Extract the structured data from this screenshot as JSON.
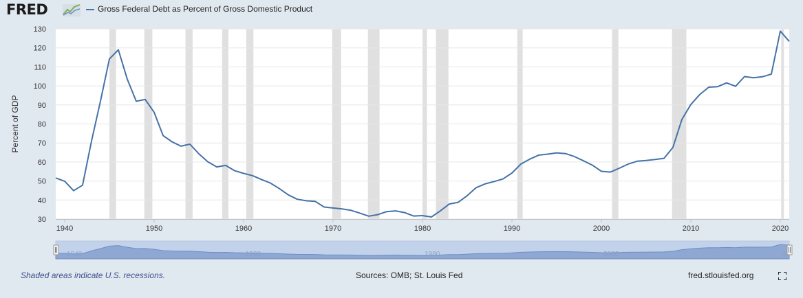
{
  "header": {
    "logo_text": "FRED",
    "legend_label": "Gross Federal Debt as Percent of Gross Domestic Product"
  },
  "footer": {
    "note": "Shaded areas indicate U.S. recessions.",
    "sources": "Sources: OMB; St. Louis Fed",
    "site": "fred.stlouisfed.org"
  },
  "colors": {
    "series": "#4572a7",
    "recession": "#e0e0e0",
    "background": "#e1e9f0",
    "plot_background": "#ffffff",
    "navigator_fill": "#c2d2eb",
    "navigator_area": "#8ea8d3"
  },
  "icons": {
    "fullscreen": "expand-corners-icon"
  },
  "chart_data": {
    "type": "line",
    "ylabel": "Percent of GDP",
    "xlim": [
      1939,
      2021
    ],
    "ylim": [
      30,
      130
    ],
    "yticks": [
      30,
      40,
      50,
      60,
      70,
      80,
      90,
      100,
      110,
      120,
      130
    ],
    "xticks": [
      1940,
      1950,
      1960,
      1970,
      1980,
      1990,
      2000,
      2010,
      2020
    ],
    "grid": true,
    "recessions": [
      [
        1945.0,
        1945.75
      ],
      [
        1948.9,
        1949.8
      ],
      [
        1953.5,
        1954.3
      ],
      [
        1957.6,
        1958.3
      ],
      [
        1960.3,
        1961.1
      ],
      [
        1969.9,
        1970.9
      ],
      [
        1973.9,
        1975.2
      ],
      [
        1980.0,
        1980.5
      ],
      [
        1981.5,
        1982.9
      ],
      [
        1990.6,
        1991.2
      ],
      [
        2001.2,
        2001.9
      ],
      [
        2007.9,
        2009.5
      ],
      [
        2020.1,
        2020.4
      ]
    ],
    "navigator_labels": [
      "1940",
      "1960",
      "1980",
      "2000",
      "20"
    ],
    "series": [
      {
        "x": [
          1939,
          1940,
          1941,
          1942,
          1943,
          1944,
          1945,
          1946,
          1947,
          1948,
          1949,
          1950,
          1951,
          1952,
          1953,
          1954,
          1955,
          1956,
          1957,
          1958,
          1959,
          1960,
          1961,
          1962,
          1963,
          1964,
          1965,
          1966,
          1967,
          1968,
          1969,
          1970,
          1971,
          1972,
          1973,
          1974,
          1975,
          1976,
          1977,
          1978,
          1979,
          1980,
          1981,
          1982,
          1983,
          1984,
          1985,
          1986,
          1987,
          1988,
          1989,
          1990,
          1991,
          1992,
          1993,
          1994,
          1995,
          1996,
          1997,
          1998,
          1999,
          2000,
          2001,
          2002,
          2003,
          2004,
          2005,
          2006,
          2007,
          2008,
          2009,
          2010,
          2011,
          2012,
          2013,
          2014,
          2015,
          2016,
          2017,
          2018,
          2019,
          2020,
          2021
        ],
        "values": [
          51.6,
          49.9,
          44.9,
          47.8,
          71,
          92,
          114.2,
          119,
          103.5,
          91.9,
          92.9,
          86.1,
          73.9,
          70.6,
          68.3,
          69.4,
          64.3,
          60.1,
          57.4,
          58.2,
          55.4,
          54,
          52.8,
          50.8,
          48.9,
          46,
          42.7,
          40.4,
          39.6,
          39.3,
          36.3,
          35.8,
          35.3,
          34.6,
          33.1,
          31.5,
          32.3,
          33.9,
          34.3,
          33.4,
          31.6,
          31.8,
          31.1,
          34.3,
          37.9,
          38.8,
          42.3,
          46.5,
          48.5,
          49.7,
          51.1,
          54.2,
          58.9,
          61.5,
          63.6,
          64.1,
          64.8,
          64.4,
          62.8,
          60.6,
          58.3,
          55.1,
          54.7,
          56.7,
          58.9,
          60.4,
          60.8,
          61.3,
          61.9,
          67.7,
          82.4,
          90.2,
          95.5,
          99.3,
          99.6,
          101.6,
          99.8,
          104.9,
          104.3,
          104.8,
          106.2,
          128.8,
          123.4
        ]
      }
    ]
  }
}
